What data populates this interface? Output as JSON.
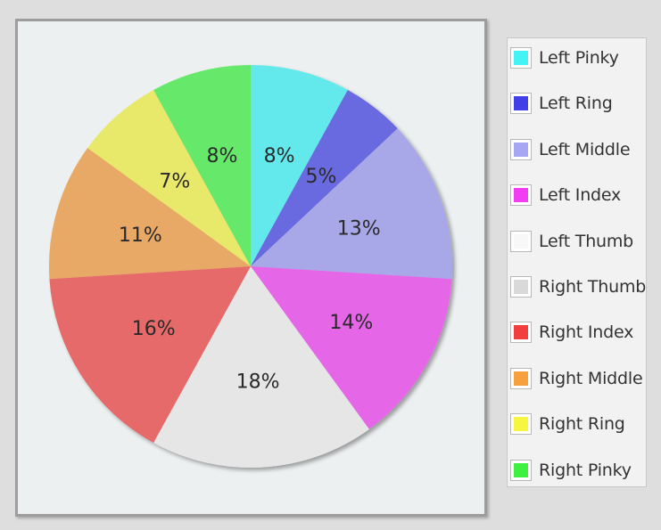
{
  "chart_data": {
    "type": "pie",
    "categories": [
      "Left Pinky",
      "Left Ring",
      "Left Middle",
      "Left Index",
      "Left Thumb",
      "Right Thumb",
      "Right Index",
      "Right Middle",
      "Right Ring",
      "Right Pinky"
    ],
    "values": [
      8,
      5,
      13,
      14,
      0,
      18,
      16,
      11,
      7,
      8
    ],
    "value_labels": [
      "8%",
      "5%",
      "13%",
      "14%",
      "",
      "18%",
      "16%",
      "11%",
      "7%",
      "8%"
    ],
    "legend_colors": [
      "#44f4f4",
      "#4040e6",
      "#a6a6f4",
      "#f23ef2",
      "#f8f8f8",
      "#d9d9d9",
      "#f23e3e",
      "#f6a03e",
      "#f6f640",
      "#40f040"
    ],
    "slice_colors": [
      "#63e9ec",
      "#6a6ae0",
      "#a8a8e8",
      "#e666e8",
      "#f8f8f8",
      "#e6e6e6",
      "#e66a6a",
      "#e8a866",
      "#e8e86a",
      "#66e96a"
    ],
    "legend_position": "right",
    "title": "",
    "grid": false
  }
}
